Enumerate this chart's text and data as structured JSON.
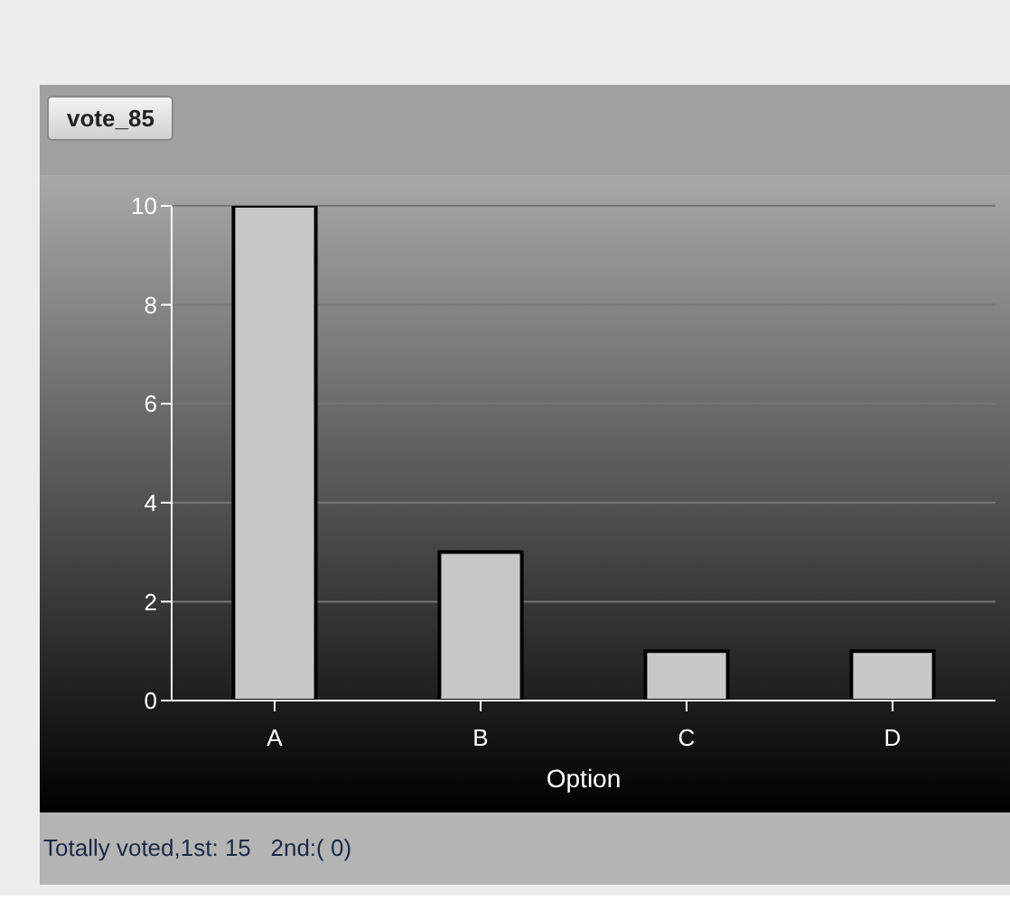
{
  "chart_data": {
    "type": "bar",
    "title": "vote_85",
    "xlabel": "Option",
    "categories": [
      "A",
      "B",
      "C",
      "D"
    ],
    "values": [
      10,
      3,
      1,
      1
    ],
    "color": "#c8c8c8",
    "ylim": [
      0,
      10
    ],
    "yticks": [
      0,
      2,
      4,
      6,
      8,
      10
    ],
    "grid": "y",
    "annotations": [
      "Totally voted,1st: 15   2nd:( 0)"
    ]
  }
}
